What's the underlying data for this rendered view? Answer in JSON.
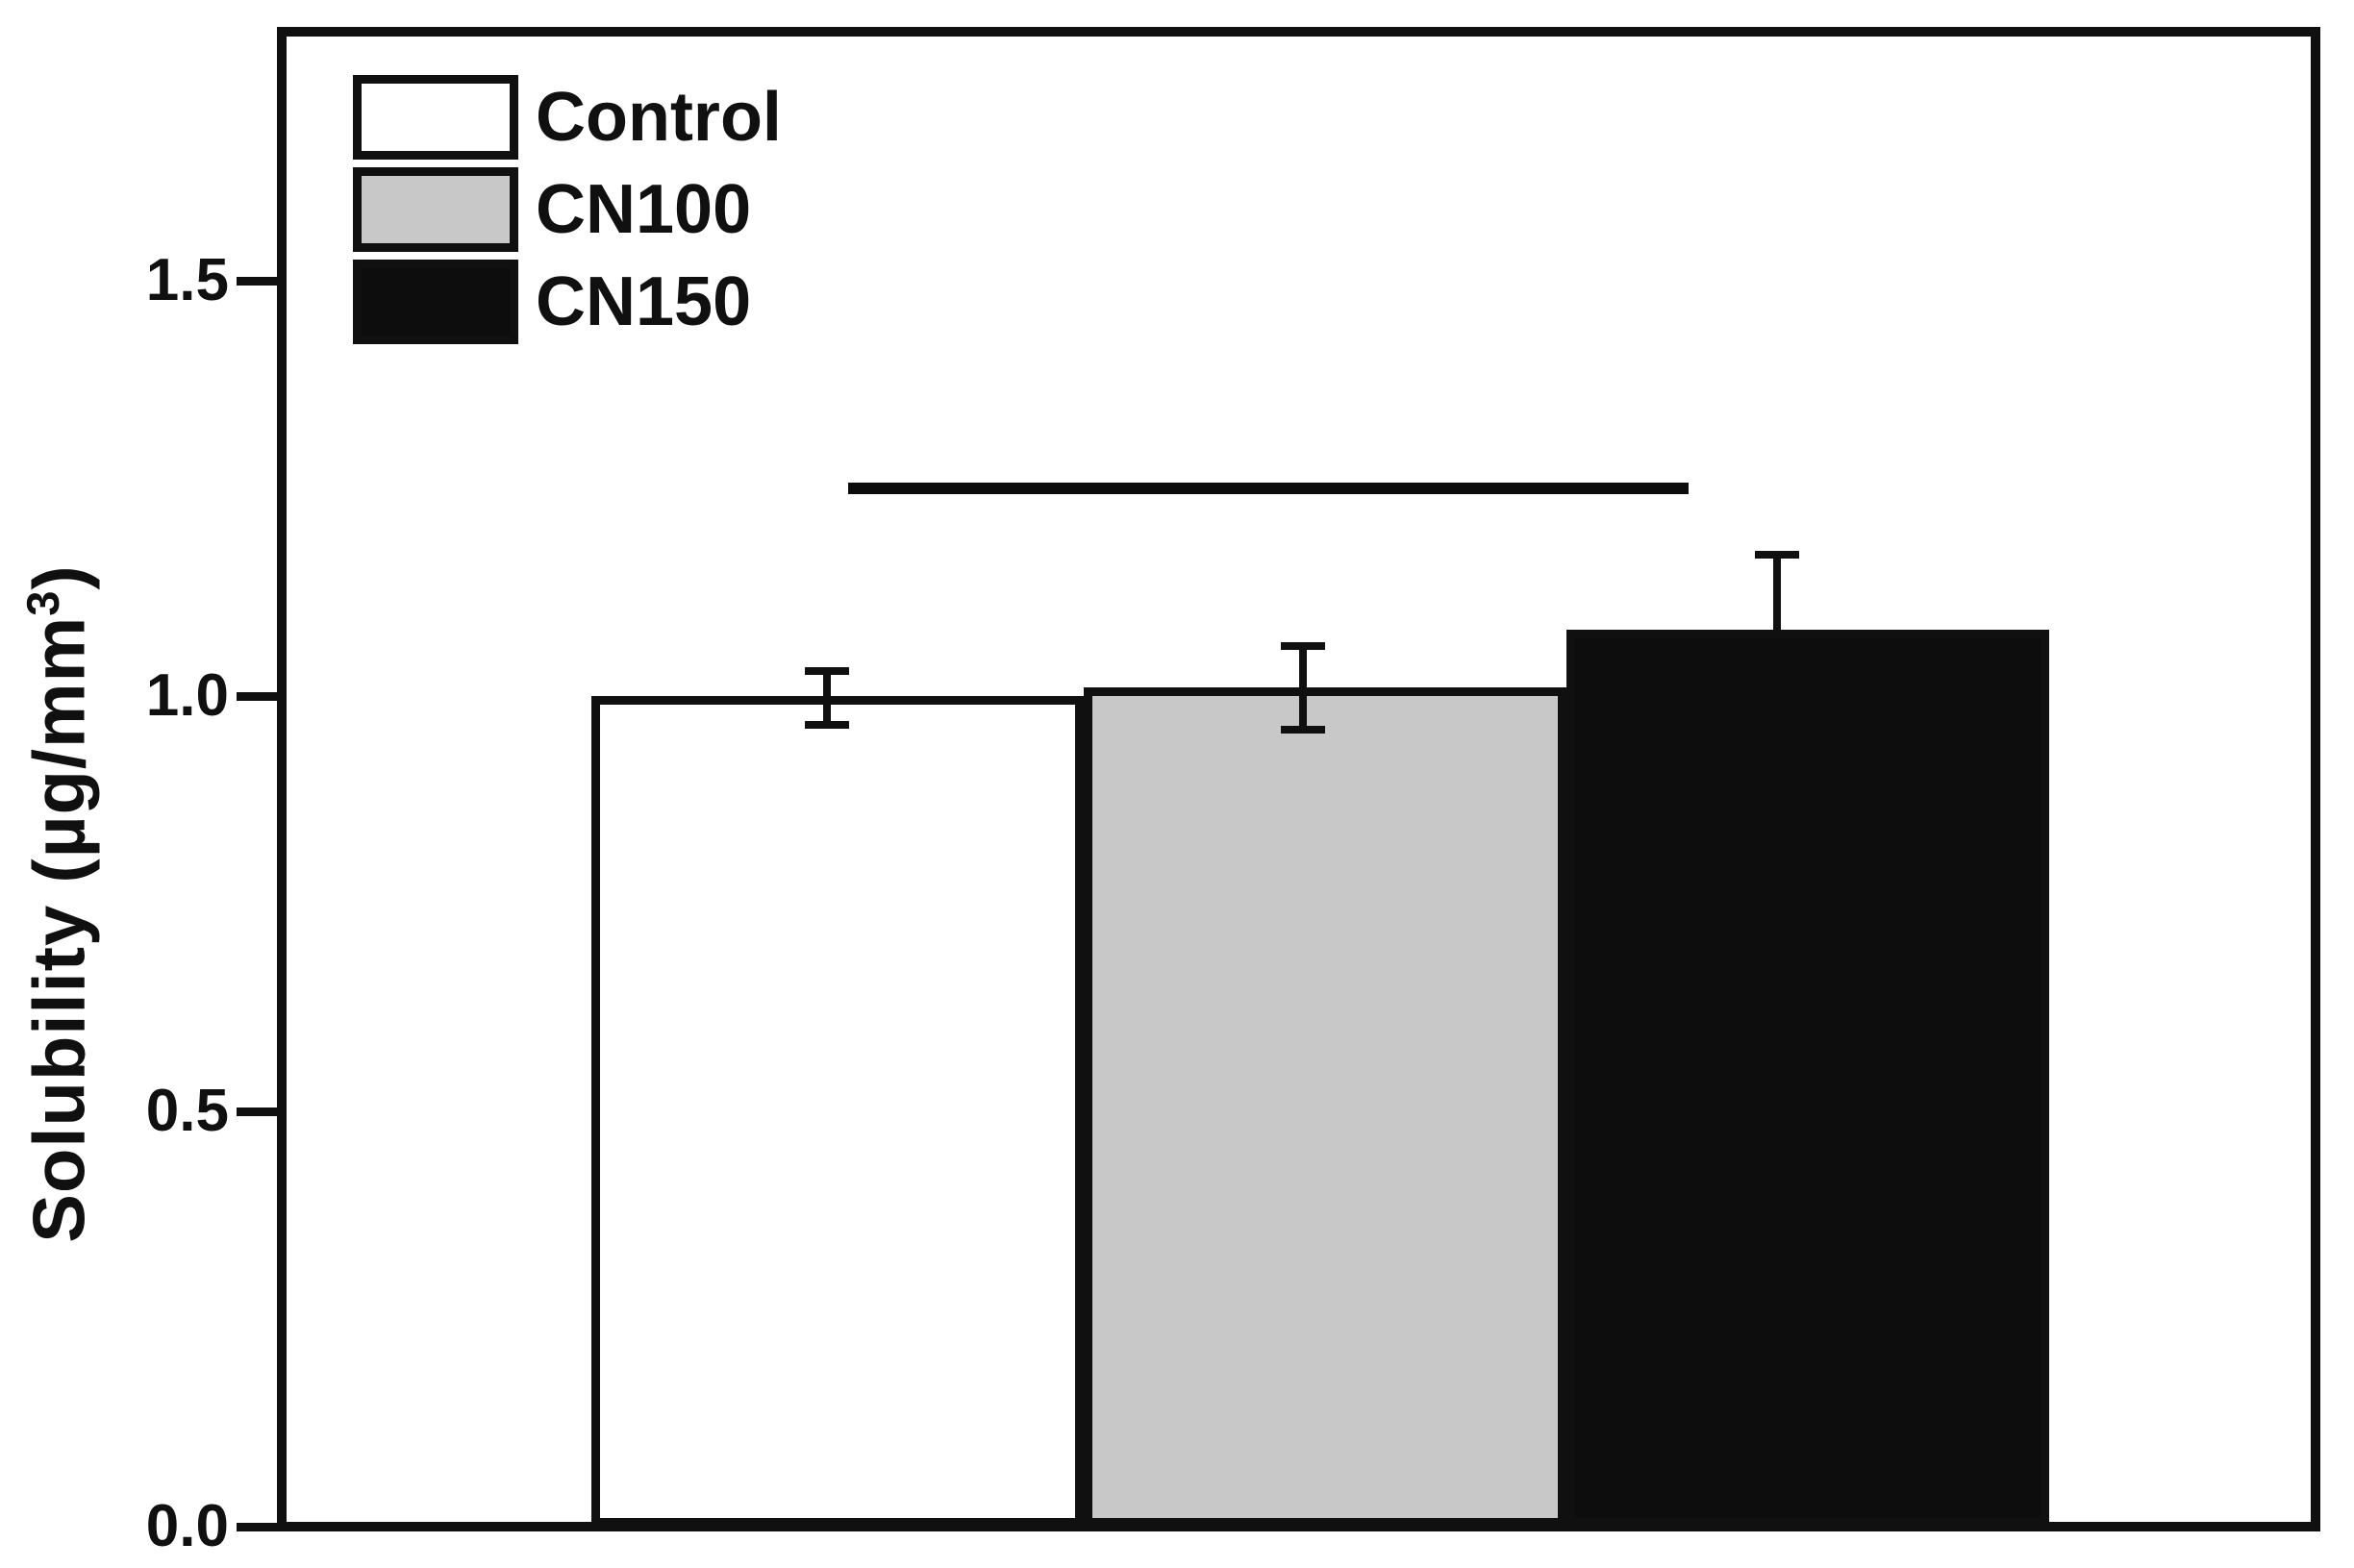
{
  "figure": {
    "y_axis_label_main": "Solubility (µg/mm",
    "y_axis_label_sup": "3",
    "y_axis_label_close": ")",
    "ink_color": "#101010",
    "background_color": "#ffffff"
  },
  "legend": {
    "items": [
      {
        "label": "Control",
        "fill": "#ffffff"
      },
      {
        "label": "CN100",
        "fill": "#c8c8c8"
      },
      {
        "label": "CN150",
        "fill": "#0d0d0d"
      }
    ]
  },
  "chart_data": {
    "type": "bar",
    "title": "",
    "xlabel": "",
    "ylabel": "Solubility (µg/mm³)",
    "ylim": [
      0,
      1.8
    ],
    "grid": false,
    "legend_position": "top-left-inside",
    "x_axis_tick_labels": false,
    "yticks": [
      {
        "value": 0.0,
        "label": "0.0"
      },
      {
        "value": 0.5,
        "label": "0.5"
      },
      {
        "value": 1.0,
        "label": "1.0"
      },
      {
        "value": 1.5,
        "label": "1.5"
      }
    ],
    "categories": [
      "Control",
      "CN100",
      "CN150"
    ],
    "series": [
      {
        "name": "Control",
        "value": 1.0,
        "err_plus": 0.03,
        "err_minus": 0.035,
        "fill": "#ffffff",
        "left_frac": 0.1523,
        "width_frac": 0.2421,
        "err_center_frac": 0.2681
      },
      {
        "name": "CN100",
        "value": 1.01,
        "err_plus": 0.05,
        "err_minus": 0.05,
        "fill": "#c8c8c8",
        "left_frac": 0.3943,
        "width_frac": 0.2374,
        "err_center_frac": 0.5021
      },
      {
        "name": "CN150",
        "value": 1.08,
        "err_plus": 0.09,
        "err_minus": null,
        "fill": "#0d0d0d",
        "left_frac": 0.6317,
        "width_frac": 0.2374,
        "err_center_frac": 0.7352
      }
    ],
    "significance_line": {
      "y_value": 1.25,
      "x1_frac": 0.2787,
      "x2_frac": 0.6917
    }
  }
}
